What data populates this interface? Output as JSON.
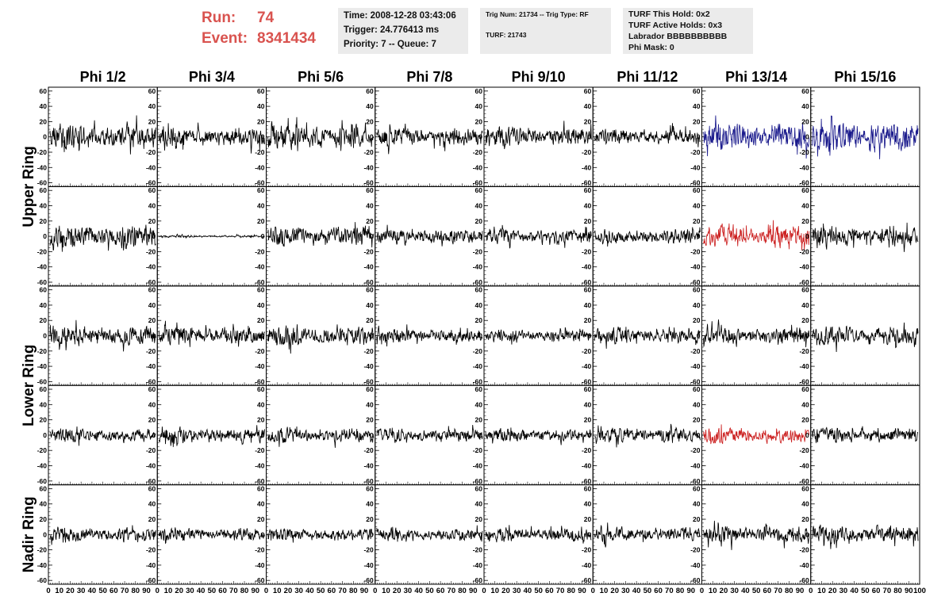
{
  "header": {
    "run_label": "Run:",
    "run_value": "74",
    "event_label": "Event:",
    "event_value": "8341434",
    "time_line": "Time: 2008-12-28 03:43:06",
    "trigger_line": "Trigger: 24.776413 ms",
    "priority_line": "Priority: 7 -- Queue: 7",
    "trig_line": "Trig Num: 21734 -- Trig Type: RF",
    "turf_line": "TURF: 21743",
    "turf_hold_line": "TURF This Hold: 0x2",
    "turf_active_line": "TURF Active Holds: 0x3",
    "labrador_line": "Labrador BBBBBBBBBB",
    "phimask_line": "Phi Mask: 0",
    "accent_color": "#d9534f",
    "box_color": "#ebebeb"
  },
  "chart_data": {
    "type": "line",
    "columns": [
      "Phi 1/2",
      "Phi 3/4",
      "Phi 5/6",
      "Phi 7/8",
      "Phi 9/10",
      "Phi 11/12",
      "Phi 13/14",
      "Phi 15/16"
    ],
    "ring_labels": [
      "Upper Ring",
      "Lower Ring",
      "Nadir Ring"
    ],
    "rows_per_ring": [
      2,
      2,
      1
    ],
    "ylim": [
      -65,
      65
    ],
    "y_ticks": [
      -60,
      -40,
      -20,
      0,
      20,
      40,
      60
    ],
    "xlim": [
      0,
      100
    ],
    "x_ticks": [
      0,
      10,
      20,
      30,
      40,
      50,
      60,
      70,
      80,
      90,
      100
    ],
    "samples_per_trace": 260,
    "series_colors": {
      "default": "#000000",
      "blue": "#1a1a8c",
      "red": "#cc2222"
    },
    "traces": [
      [
        {
          "amp": 22,
          "color": "default"
        },
        {
          "amp": 18,
          "color": "default"
        },
        {
          "amp": 22,
          "color": "default"
        },
        {
          "amp": 16,
          "color": "default"
        },
        {
          "amp": 17,
          "color": "default"
        },
        {
          "amp": 14,
          "color": "default"
        },
        {
          "amp": 25,
          "color": "blue"
        },
        {
          "amp": 28,
          "color": "blue"
        }
      ],
      [
        {
          "amp": 20,
          "color": "default"
        },
        {
          "amp": 2,
          "color": "default"
        },
        {
          "amp": 17,
          "color": "default"
        },
        {
          "amp": 14,
          "color": "default"
        },
        {
          "amp": 13,
          "color": "default"
        },
        {
          "amp": 13,
          "color": "default"
        },
        {
          "amp": 20,
          "color": "red"
        },
        {
          "amp": 18,
          "color": "default"
        }
      ],
      [
        {
          "amp": 17,
          "color": "default"
        },
        {
          "amp": 15,
          "color": "default"
        },
        {
          "amp": 17,
          "color": "default"
        },
        {
          "amp": 12,
          "color": "default"
        },
        {
          "amp": 11,
          "color": "default"
        },
        {
          "amp": 14,
          "color": "default"
        },
        {
          "amp": 16,
          "color": "default"
        },
        {
          "amp": 16,
          "color": "default"
        }
      ],
      [
        {
          "amp": 13,
          "color": "default"
        },
        {
          "amp": 14,
          "color": "default"
        },
        {
          "amp": 13,
          "color": "default"
        },
        {
          "amp": 12,
          "color": "default"
        },
        {
          "amp": 11,
          "color": "default"
        },
        {
          "amp": 14,
          "color": "default"
        },
        {
          "amp": 14,
          "color": "red"
        },
        {
          "amp": 13,
          "color": "default"
        }
      ],
      [
        {
          "amp": 14,
          "color": "default"
        },
        {
          "amp": 12,
          "color": "default"
        },
        {
          "amp": 11,
          "color": "default"
        },
        {
          "amp": 11,
          "color": "default"
        },
        {
          "amp": 12,
          "color": "default"
        },
        {
          "amp": 13,
          "color": "default"
        },
        {
          "amp": 15,
          "color": "default"
        },
        {
          "amp": 16,
          "color": "default"
        }
      ]
    ]
  }
}
